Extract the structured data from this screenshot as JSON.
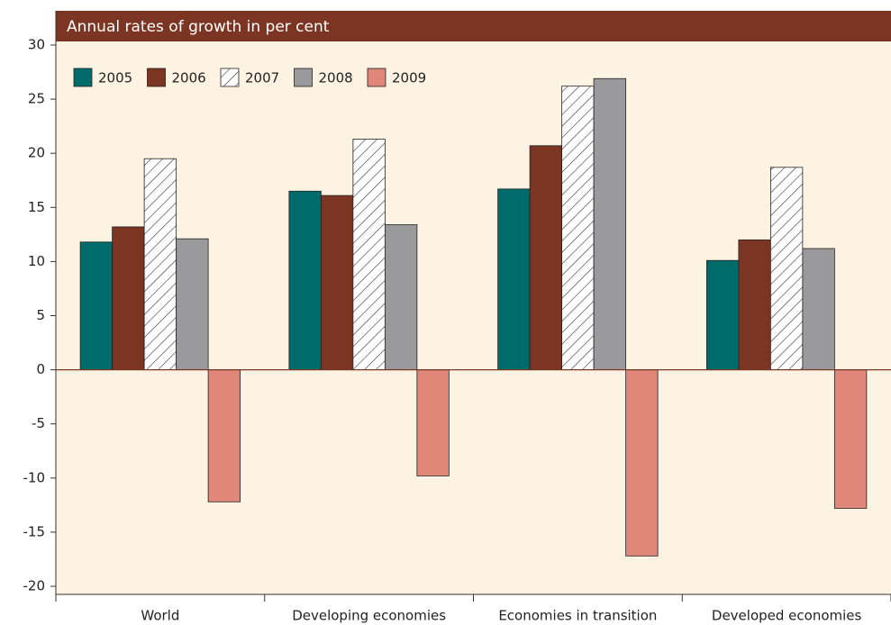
{
  "chart_data": {
    "type": "bar",
    "title": "Annual rates of growth in per cent",
    "categories": [
      "World",
      "Developing economies",
      "Economies in transition",
      "Developed economies"
    ],
    "series": [
      {
        "name": "2005",
        "color": "#006b6b",
        "values": [
          11.8,
          16.5,
          16.7,
          10.1
        ]
      },
      {
        "name": "2006",
        "color": "#7b3522",
        "values": [
          13.2,
          16.1,
          20.7,
          12.0
        ]
      },
      {
        "name": "2007",
        "color": "#ffffff",
        "hatch": true,
        "values": [
          19.5,
          21.3,
          26.2,
          18.7
        ]
      },
      {
        "name": "2008",
        "color": "#9a9a9c",
        "values": [
          12.1,
          13.4,
          26.9,
          11.2
        ]
      },
      {
        "name": "2009",
        "color": "#e0877a",
        "values": [
          -12.2,
          -9.8,
          -17.2,
          -12.8
        ]
      }
    ],
    "ylim": [
      -20,
      30
    ],
    "yticks": [
      -20,
      -15,
      -10,
      -5,
      0,
      5,
      10,
      15,
      20,
      25,
      30
    ],
    "legend": "top-left"
  }
}
